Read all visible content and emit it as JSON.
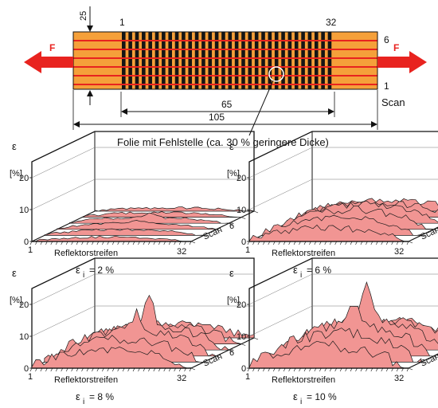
{
  "specimen": {
    "dim_25": "25",
    "strip_first": "1",
    "strip_last": "32",
    "scan_top": "6",
    "scan_bottom": "1",
    "force_left": "F",
    "force_right": "F",
    "scan_label": "Scan",
    "dim_65": "65",
    "dim_105": "105",
    "defect_caption": "Folie mit Fehlstelle (ca. 30 % geringere Dicke)",
    "strip_count": 32,
    "scan_count": 6
  },
  "plots": [
    {
      "y_symbol": "ε",
      "y_unit": "[%]",
      "y_ticks": [
        "0",
        "10",
        "20"
      ],
      "x_label": "Reflektorstreifen",
      "x_start": "1",
      "x_end": "32",
      "scan_label": "Scan",
      "scan_end": "6",
      "caption_symbol": "ε",
      "caption_sub": "i",
      "caption_value": "= 2  %",
      "strain_percent": 2,
      "peak_percent": 3.5
    },
    {
      "y_symbol": "ε",
      "y_unit": "[%]",
      "y_ticks": [
        "0",
        "10",
        "20"
      ],
      "x_label": "Reflektorstreifen",
      "x_start": "1",
      "x_end": "32",
      "scan_label": "Scan",
      "scan_end": "6",
      "caption_symbol": "ε",
      "caption_sub": "i",
      "caption_value": "= 6  %",
      "strain_percent": 6,
      "peak_percent": 8
    },
    {
      "y_symbol": "ε",
      "y_unit": "[%]",
      "y_ticks": [
        "0",
        "10",
        "20"
      ],
      "x_label": "Reflektorstreifen",
      "x_start": "1",
      "x_end": "32",
      "scan_label": "Scan",
      "scan_end": "6",
      "caption_symbol": "ε",
      "caption_sub": "i",
      "caption_value": "= 8  %",
      "strain_percent": 8,
      "peak_percent": 18
    },
    {
      "y_symbol": "ε",
      "y_unit": "[%]",
      "y_ticks": [
        "0",
        "10",
        "20"
      ],
      "x_label": "Reflektorstreifen",
      "x_start": "1",
      "x_end": "32",
      "scan_label": "Scan",
      "scan_end": "6",
      "caption_symbol": "ε",
      "caption_sub": "i",
      "caption_value": "= 10 %",
      "strain_percent": 10,
      "peak_percent": 22
    }
  ],
  "colors": {
    "specimen_fill": "#f5a03a",
    "strip_dark": "#151515",
    "scan_line": "#e8231f",
    "force_arrow": "#e8231f",
    "surface_fill": "#f19593",
    "surface_line": "#1a1a1a"
  }
}
